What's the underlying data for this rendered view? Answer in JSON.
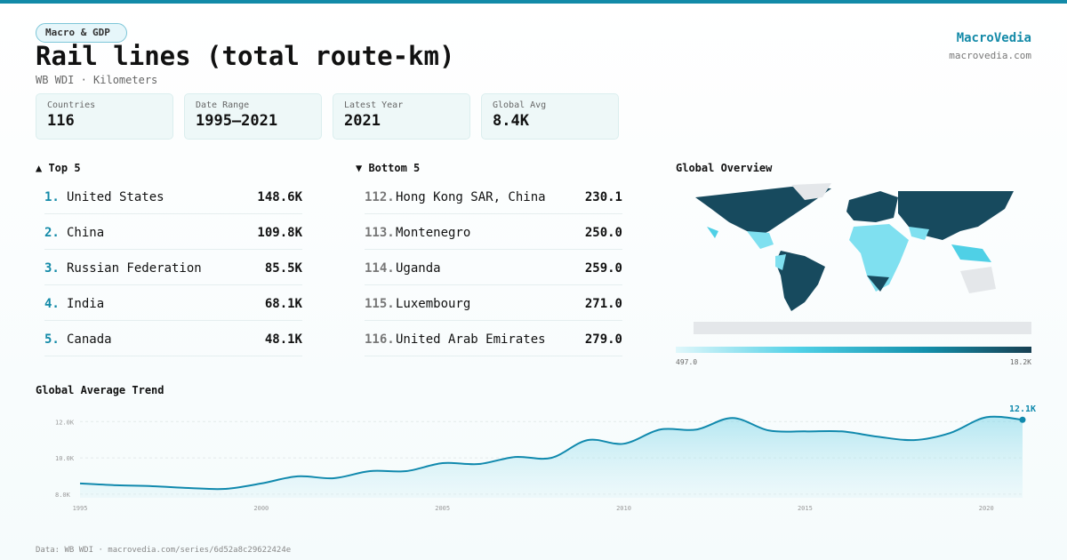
{
  "header": {
    "badge": "Macro & GDP",
    "title": "Rail lines (total route-km)",
    "subtitle": "WB WDI · Kilometers",
    "brand": "MacroVedia",
    "site": "macrovedia.com"
  },
  "stats": [
    {
      "label": "Countries",
      "value": "116"
    },
    {
      "label": "Date Range",
      "value": "1995–2021"
    },
    {
      "label": "Latest Year",
      "value": "2021"
    },
    {
      "label": "Global Avg",
      "value": "8.4K"
    }
  ],
  "top": {
    "title": "▲ Top 5",
    "rows": [
      {
        "rank": "1.",
        "name": "United States",
        "value": "148.6K"
      },
      {
        "rank": "2.",
        "name": "China",
        "value": "109.8K"
      },
      {
        "rank": "3.",
        "name": "Russian Federation",
        "value": "85.5K"
      },
      {
        "rank": "4.",
        "name": "India",
        "value": "68.1K"
      },
      {
        "rank": "5.",
        "name": "Canada",
        "value": "48.1K"
      }
    ]
  },
  "bottom": {
    "title": "▼ Bottom 5",
    "rows": [
      {
        "rank": "112.",
        "name": "Hong Kong SAR, China",
        "value": "230.1"
      },
      {
        "rank": "113.",
        "name": "Montenegro",
        "value": "250.0"
      },
      {
        "rank": "114.",
        "name": "Uganda",
        "value": "259.0"
      },
      {
        "rank": "115.",
        "name": "Luxembourg",
        "value": "271.0"
      },
      {
        "rank": "116.",
        "name": "United Arab Emirates",
        "value": "279.0"
      }
    ]
  },
  "map": {
    "title": "Global Overview",
    "min_label": "497.0",
    "max_label": "18.2K"
  },
  "footer": "Data: WB WDI · macrovedia.com/series/6d52a8c29622424e",
  "chart_data": {
    "type": "line",
    "title": "Global Average Trend",
    "x": [
      1995,
      1996,
      1997,
      1998,
      1999,
      2000,
      2001,
      2002,
      2003,
      2004,
      2005,
      2006,
      2007,
      2008,
      2009,
      2010,
      2011,
      2012,
      2013,
      2014,
      2015,
      2016,
      2017,
      2018,
      2019,
      2020,
      2021
    ],
    "values": [
      8590,
      8490,
      8440,
      8340,
      8290,
      8590,
      8980,
      8880,
      9270,
      9270,
      9710,
      9660,
      10050,
      10000,
      10980,
      10780,
      11560,
      11560,
      12200,
      11510,
      11460,
      11460,
      11170,
      10980,
      11370,
      12240,
      12100
    ],
    "value_labels": [
      null,
      null,
      null,
      null,
      null,
      null,
      null,
      null,
      null,
      null,
      null,
      null,
      null,
      null,
      null,
      null,
      null,
      null,
      null,
      null,
      null,
      null,
      null,
      null,
      null,
      null,
      "12.1K"
    ],
    "color": "#1089ad",
    "xlim": [
      1995,
      2021
    ],
    "xticks": [
      1995,
      2000,
      2005,
      2010,
      2015,
      2020
    ],
    "ylim": [
      7800,
      12700
    ],
    "yticks": [
      {
        "value": 8000,
        "label": "8.0K"
      },
      {
        "value": 10000,
        "label": "10.0K"
      },
      {
        "value": 12000,
        "label": "12.0K"
      }
    ],
    "grid": true
  }
}
